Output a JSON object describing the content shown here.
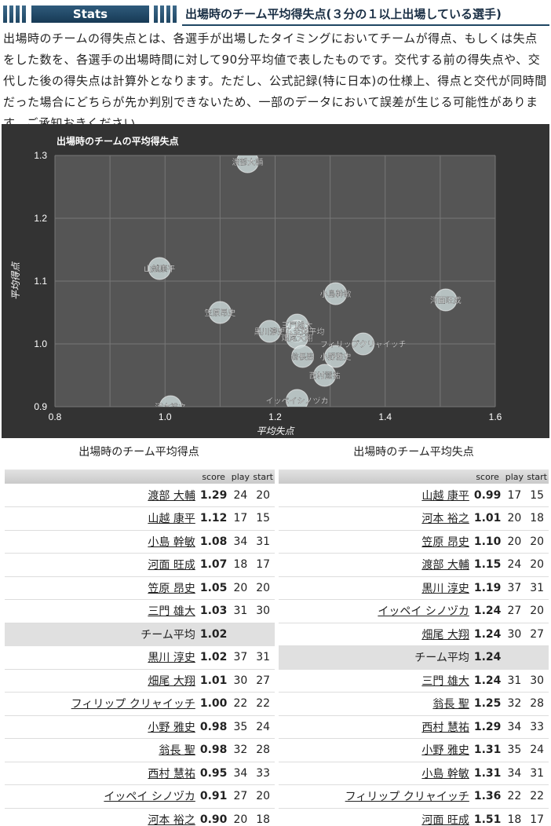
{
  "header": {
    "tab_label": "Stats",
    "title": "出場時のチーム平均得失点(３分の１以上出場している選手)"
  },
  "description": "出場時のチームの得失点とは、各選手が出場したタイミングにおいてチームが得点、もしくは失点をした数を、各選手の出場時間に対して90分平均値で表したものです。交代する前の得失点や、交代した後の得失点は計算外となります。ただし、公式記録(特に日本)の仕様上、得点と交代が同時間だった場合にどちらが先か判別できないため、一部のデータにおいて誤差が生じる可能性があります。ご承知おきください。",
  "chart_data": {
    "type": "scatter",
    "title": "出場時のチームの平均得失点",
    "xlabel": "平均失点",
    "ylabel": "平均得点",
    "xlim": [
      0.8,
      1.6
    ],
    "ylim": [
      0.9,
      1.3
    ],
    "xticks": [
      "0.8",
      "1.0",
      "1.2",
      "1.4",
      "1.6"
    ],
    "yticks": [
      "0.9",
      "1.0",
      "1.1",
      "1.2",
      "1.3"
    ],
    "grid": true,
    "colors": {
      "background": "#333333",
      "plot": "#555555",
      "point": "#c8d5d5",
      "grid": "#777777",
      "text": "#ffffff"
    },
    "points": [
      {
        "label": "渡部大輔",
        "x": 1.15,
        "y": 1.29
      },
      {
        "label": "山越康平",
        "x": 0.99,
        "y": 1.12
      },
      {
        "label": "小島幹敏",
        "x": 1.31,
        "y": 1.08
      },
      {
        "label": "河面旺成",
        "x": 1.51,
        "y": 1.07
      },
      {
        "label": "笠原昂史",
        "x": 1.1,
        "y": 1.05
      },
      {
        "label": "三門雄大",
        "x": 1.24,
        "y": 1.03
      },
      {
        "label": "チーム全体平均",
        "x": 1.24,
        "y": 1.02
      },
      {
        "label": "黒川淳史",
        "x": 1.19,
        "y": 1.02
      },
      {
        "label": "畑尾大翔",
        "x": 1.24,
        "y": 1.01
      },
      {
        "label": "フィリップクリャイッチ",
        "x": 1.36,
        "y": 1.0
      },
      {
        "label": "小野雅史",
        "x": 1.31,
        "y": 0.98
      },
      {
        "label": "翁長聖",
        "x": 1.25,
        "y": 0.98
      },
      {
        "label": "西村慧祐",
        "x": 1.29,
        "y": 0.95
      },
      {
        "label": "イッペイシノヅカ",
        "x": 1.24,
        "y": 0.91
      },
      {
        "label": "河本裕之",
        "x": 1.01,
        "y": 0.9
      }
    ]
  },
  "score_table": {
    "title": "出場時のチーム平均得点",
    "columns": [
      "score",
      "play",
      "start"
    ],
    "rows": [
      {
        "name": "渡部 大輔",
        "score": "1.29",
        "play": "24",
        "start": "20"
      },
      {
        "name": "山越 康平",
        "score": "1.12",
        "play": "17",
        "start": "15"
      },
      {
        "name": "小島 幹敏",
        "score": "1.08",
        "play": "34",
        "start": "31"
      },
      {
        "name": "河面 旺成",
        "score": "1.07",
        "play": "18",
        "start": "17"
      },
      {
        "name": "笠原 昂史",
        "score": "1.05",
        "play": "20",
        "start": "20"
      },
      {
        "name": "三門 雄大",
        "score": "1.03",
        "play": "31",
        "start": "30"
      },
      {
        "name": "チーム平均",
        "score": "1.02",
        "play": "",
        "start": "",
        "avg": true
      },
      {
        "name": "黒川 淳史",
        "score": "1.02",
        "play": "37",
        "start": "31"
      },
      {
        "name": "畑尾 大翔",
        "score": "1.01",
        "play": "30",
        "start": "27"
      },
      {
        "name": "フィリップ クリャイッチ",
        "score": "1.00",
        "play": "22",
        "start": "22"
      },
      {
        "name": "小野 雅史",
        "score": "0.98",
        "play": "35",
        "start": "24"
      },
      {
        "name": "翁長 聖",
        "score": "0.98",
        "play": "32",
        "start": "28"
      },
      {
        "name": "西村 慧祐",
        "score": "0.95",
        "play": "34",
        "start": "33"
      },
      {
        "name": "イッペイ シノヅカ",
        "score": "0.91",
        "play": "27",
        "start": "20"
      },
      {
        "name": "河本 裕之",
        "score": "0.90",
        "play": "20",
        "start": "18"
      }
    ]
  },
  "concede_table": {
    "title": "出場時のチーム平均失点",
    "columns": [
      "score",
      "play",
      "start"
    ],
    "rows": [
      {
        "name": "山越 康平",
        "score": "0.99",
        "play": "17",
        "start": "15"
      },
      {
        "name": "河本 裕之",
        "score": "1.01",
        "play": "20",
        "start": "18"
      },
      {
        "name": "笠原 昂史",
        "score": "1.10",
        "play": "20",
        "start": "20"
      },
      {
        "name": "渡部 大輔",
        "score": "1.15",
        "play": "24",
        "start": "20"
      },
      {
        "name": "黒川 淳史",
        "score": "1.19",
        "play": "37",
        "start": "31"
      },
      {
        "name": "イッペイ シノヅカ",
        "score": "1.24",
        "play": "27",
        "start": "20"
      },
      {
        "name": "畑尾 大翔",
        "score": "1.24",
        "play": "30",
        "start": "27"
      },
      {
        "name": "チーム平均",
        "score": "1.24",
        "play": "",
        "start": "",
        "avg": true
      },
      {
        "name": "三門 雄大",
        "score": "1.24",
        "play": "31",
        "start": "30"
      },
      {
        "name": "翁長 聖",
        "score": "1.25",
        "play": "32",
        "start": "28"
      },
      {
        "name": "西村 慧祐",
        "score": "1.29",
        "play": "34",
        "start": "33"
      },
      {
        "name": "小野 雅史",
        "score": "1.31",
        "play": "35",
        "start": "24"
      },
      {
        "name": "小島 幹敏",
        "score": "1.31",
        "play": "34",
        "start": "31"
      },
      {
        "name": "フィリップ クリャイッチ",
        "score": "1.36",
        "play": "22",
        "start": "22"
      },
      {
        "name": "河面 旺成",
        "score": "1.51",
        "play": "18",
        "start": "17"
      }
    ]
  }
}
